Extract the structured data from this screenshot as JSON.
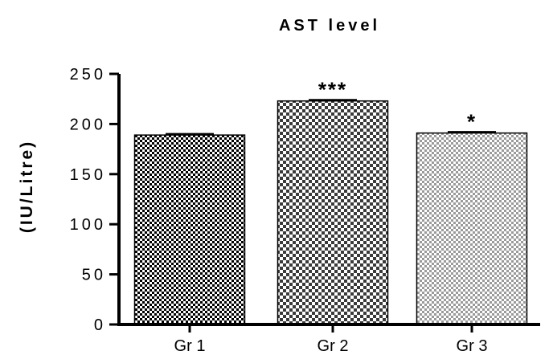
{
  "chart_data": {
    "type": "bar",
    "title": "AST level",
    "xlabel": "",
    "ylabel": "(IU/Litre)",
    "categories": [
      "Gr 1",
      "Gr 2",
      "Gr 3"
    ],
    "values": [
      189,
      223,
      191
    ],
    "errors": [
      1,
      1,
      1
    ],
    "annotations": [
      "",
      "***",
      "*"
    ],
    "yticks": [
      0,
      50,
      100,
      150,
      200,
      250
    ],
    "ylim": [
      0,
      250
    ],
    "grid": false,
    "legend": "none",
    "bar_patterns": [
      "dense-checker",
      "medium-checker",
      "light-checker"
    ],
    "colors": {
      "fill_dark": "#000000",
      "fill_light": "#ffffff",
      "fill_gray": "#9a9a9a",
      "axis": "#000000"
    }
  }
}
